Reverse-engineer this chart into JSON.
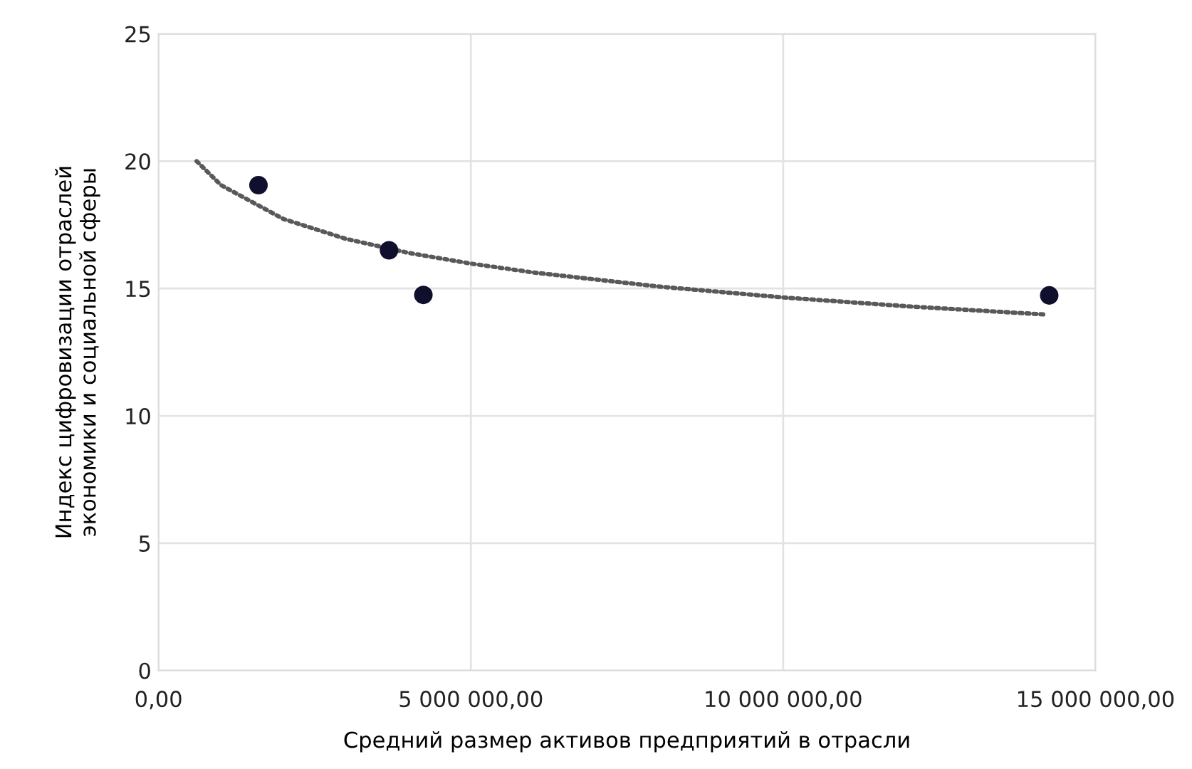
{
  "chart_data": {
    "type": "scatter",
    "xlabel": "Средний размер активов предприятий в отрасли",
    "ylabel": "Индекс цифровизации отраслей\nэкономики и социальной сферы",
    "xlim": [
      0,
      15000000
    ],
    "ylim": [
      0,
      25
    ],
    "xticks": [
      {
        "value": 0,
        "label": "0,00"
      },
      {
        "value": 5000000,
        "label": "5 000 000,00"
      },
      {
        "value": 10000000,
        "label": "10 000 000,00"
      },
      {
        "value": 15000000,
        "label": "15 000 000,00"
      }
    ],
    "yticks": [
      0,
      5,
      10,
      15,
      20,
      25
    ],
    "grid": true,
    "series": [
      {
        "color": "#10102e",
        "marker": "circle",
        "x": [
          1600000,
          3690000,
          4240000,
          14260000
        ],
        "values": [
          19.06,
          16.5,
          14.75,
          14.73
        ]
      },
      {
        "type": "line",
        "color": "#595959",
        "line_style": "dotted",
        "marker": "none",
        "x": [
          610000,
          1000000,
          2000000,
          3000000,
          4000000,
          5000000,
          6000000,
          8000000,
          10000000,
          12000000,
          14200000
        ],
        "values": [
          20.0,
          19.06,
          17.73,
          16.95,
          16.4,
          15.98,
          15.63,
          15.08,
          14.65,
          14.3,
          13.98
        ]
      }
    ]
  }
}
